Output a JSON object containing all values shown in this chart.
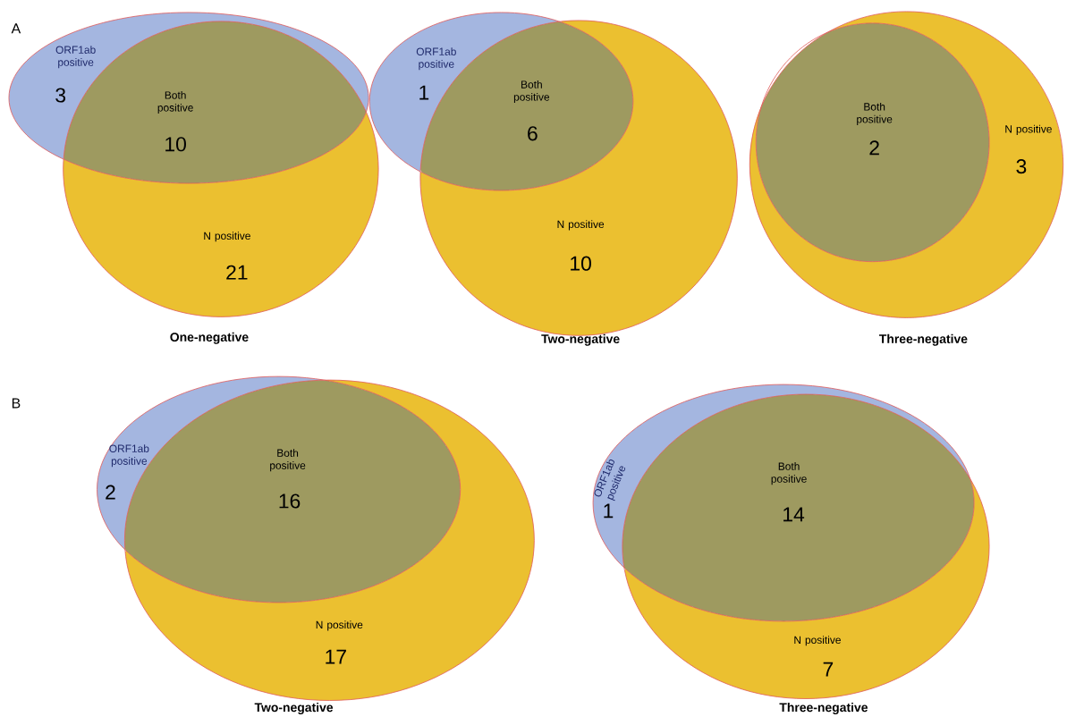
{
  "chart_data": [
    {
      "type": "other",
      "title": "One-negative",
      "categories": [
        "ORF1ab positive",
        "Both positive",
        "N positive"
      ],
      "values": [
        3,
        10,
        21
      ],
      "data_labels": true,
      "colors": [
        "#a4b6e0",
        "#9e9a60",
        "#ebc030"
      ],
      "annotations": [
        "A"
      ]
    },
    {
      "type": "other",
      "title": "Two-negative",
      "categories": [
        "ORF1ab positive",
        "Both positive",
        "N positive"
      ],
      "values": [
        1,
        6,
        10
      ],
      "data_labels": true,
      "colors": [
        "#a4b6e0",
        "#9e9a60",
        "#ebc030"
      ]
    },
    {
      "type": "other",
      "title": "Three-negative",
      "categories": [
        "Both positive",
        "N positive"
      ],
      "values": [
        2,
        3
      ],
      "data_labels": true,
      "colors": [
        "#9e9a60",
        "#ebc030"
      ]
    },
    {
      "type": "other",
      "title": "Two-negative",
      "categories": [
        "ORF1ab positive",
        "Both positive",
        "N positive"
      ],
      "values": [
        2,
        16,
        17
      ],
      "data_labels": true,
      "colors": [
        "#a4b6e0",
        "#9e9a60",
        "#ebc030"
      ],
      "annotations": [
        "B"
      ]
    },
    {
      "type": "other",
      "title": "Three-negative",
      "categories": [
        "ORF1ab positive",
        "Both positive",
        "N positive"
      ],
      "values": [
        1,
        14,
        7
      ],
      "data_labels": true,
      "colors": [
        "#a4b6e0",
        "#9e9a60",
        "#ebc030"
      ]
    }
  ]
}
